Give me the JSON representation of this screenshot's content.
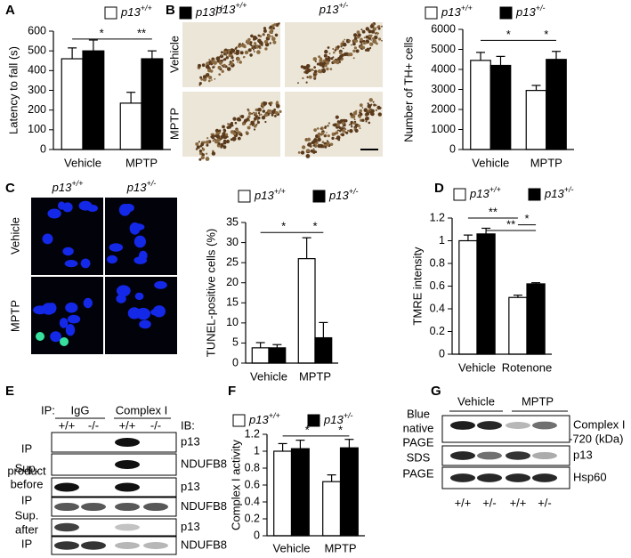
{
  "panel_labels": [
    "A",
    "B",
    "C",
    "D",
    "E",
    "F",
    "G"
  ],
  "chart_data": [
    {
      "type": "bar",
      "ylabel": "Latency to fall (s)",
      "categories": [
        "Vehicle",
        "MPTP"
      ],
      "series": [
        {
          "name": "p13+/+",
          "color": "#ffffff",
          "values": [
            460,
            235
          ],
          "errors": [
            55,
            55
          ]
        },
        {
          "name": "p13+/-",
          "color": "#000000",
          "values": [
            500,
            460
          ],
          "errors": [
            55,
            40
          ]
        }
      ],
      "ylim": [
        0,
        600
      ],
      "yticks": [
        0,
        100,
        200,
        300,
        400,
        500,
        600
      ],
      "annotations": [
        "*",
        "**"
      ]
    },
    {
      "type": "bar",
      "ylabel": "Number of TH+ cells",
      "categories": [
        "Vehicle",
        "MPTP"
      ],
      "series": [
        {
          "name": "p13+/+",
          "color": "#ffffff",
          "values": [
            4450,
            2950
          ],
          "errors": [
            400,
            250
          ]
        },
        {
          "name": "p13+/-",
          "color": "#000000",
          "values": [
            4200,
            4500
          ],
          "errors": [
            450,
            400
          ]
        }
      ],
      "ylim": [
        0,
        6000
      ],
      "yticks": [
        0,
        1000,
        2000,
        3000,
        4000,
        5000,
        6000
      ],
      "annotations": [
        "*",
        "*"
      ]
    },
    {
      "type": "bar",
      "ylabel": "TUNEL-positive cells (%)",
      "categories": [
        "Vehicle",
        "MPTP"
      ],
      "series": [
        {
          "name": "p13+/+",
          "color": "#ffffff",
          "values": [
            3.8,
            26
          ],
          "errors": [
            1.3,
            5.2
          ]
        },
        {
          "name": "p13+/-",
          "color": "#000000",
          "values": [
            3.8,
            6.3
          ],
          "errors": [
            0.8,
            3.8
          ]
        }
      ],
      "ylim": [
        0,
        35
      ],
      "yticks": [
        0,
        5,
        10,
        15,
        20,
        25,
        30,
        35
      ],
      "annotations": [
        "*",
        "*"
      ]
    },
    {
      "type": "bar",
      "ylabel": "TMRE intensity",
      "categories": [
        "Vehicle",
        "Rotenone"
      ],
      "series": [
        {
          "name": "p13+/+",
          "color": "#ffffff",
          "values": [
            1.0,
            0.5
          ],
          "errors": [
            0.05,
            0.02
          ]
        },
        {
          "name": "p13+/-",
          "color": "#000000",
          "values": [
            1.06,
            0.62
          ],
          "errors": [
            0.05,
            0.01
          ]
        }
      ],
      "ylim": [
        0,
        1.2
      ],
      "yticks": [
        0,
        0.2,
        0.4,
        0.6,
        0.8,
        1,
        1.2
      ],
      "annotations": [
        "**",
        "*",
        "**"
      ]
    },
    {
      "type": "bar",
      "ylabel": "Complex I activity",
      "categories": [
        "Vehicle",
        "MPTP"
      ],
      "series": [
        {
          "name": "p13+/+",
          "color": "#ffffff",
          "values": [
            1.0,
            0.64
          ],
          "errors": [
            0.09,
            0.08
          ]
        },
        {
          "name": "p13+/-",
          "color": "#000000",
          "values": [
            1.03,
            1.04
          ],
          "errors": [
            0.1,
            0.1
          ]
        }
      ],
      "ylim": [
        0,
        1.2
      ],
      "yticks": [
        0,
        0.2,
        0.4,
        0.6,
        0.8,
        1,
        1.2
      ],
      "annotations": [
        "*",
        "*"
      ]
    }
  ],
  "micrograph_B": {
    "columns": [
      "p13+/+",
      "p13+/-"
    ],
    "rows": [
      "Vehicle",
      "MPTP"
    ]
  },
  "micrograph_C": {
    "columns": [
      "p13+/+",
      "p13+/-"
    ],
    "rows": [
      "Vehicle",
      "MPTP"
    ]
  },
  "blot_E": {
    "ip_label": "IP:",
    "ip_groups": [
      "IgG",
      "Complex I"
    ],
    "ib_label": "IB:",
    "genotypes": [
      "+/+",
      "-/-",
      "+/+",
      "-/-"
    ],
    "row_groups": [
      [
        "IP",
        "product"
      ],
      [
        "Sup.",
        "before",
        "IP"
      ],
      [
        "Sup.",
        "after",
        "IP"
      ]
    ],
    "proteins": [
      "p13",
      "NDUFB8",
      "p13",
      "NDUFB8",
      "p13",
      "NDUFB8"
    ]
  },
  "blot_G": {
    "treatments": [
      "Vehicle",
      "MPTP"
    ],
    "gel_labels": [
      [
        "Blue",
        "native",
        "PAGE"
      ],
      [
        "SDS",
        "PAGE"
      ]
    ],
    "proteins": [
      "Complex I",
      "p13",
      "Hsp60"
    ],
    "marker": "-720 (kDa)",
    "genotypes": [
      "+/+",
      "+/-",
      "+/+",
      "+/-"
    ]
  }
}
